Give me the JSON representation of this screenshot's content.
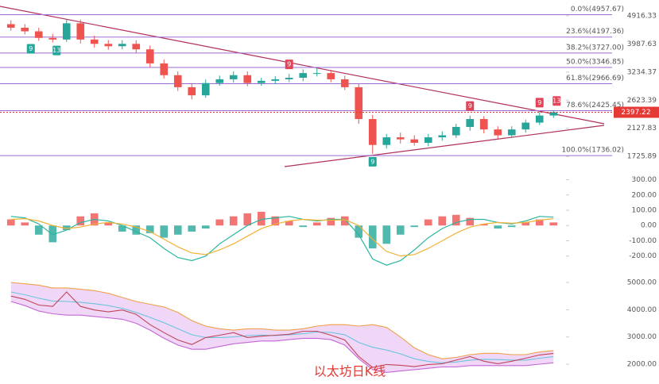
{
  "chart_data": [
    {
      "type": "candlestick",
      "log_scale": true,
      "ylim": [
        1600,
        5530
      ],
      "yticks": [
        4916.33,
        3987.63,
        3234.37,
        2623.39,
        2127.83,
        1725.89
      ],
      "up_color": "#26a69a",
      "down_color": "#ef5350",
      "open": [
        4620,
        4500,
        4380,
        4170,
        4120,
        4650,
        4120,
        3990,
        3920,
        3990,
        3830,
        3450,
        3160,
        2890,
        2720,
        2980,
        3065,
        3160,
        2980,
        3030,
        3065,
        3100,
        3210,
        3210,
        3065,
        2890,
        2280,
        1880,
        1990,
        1960,
        1910,
        1990,
        2020,
        2150,
        2280,
        2110,
        2020,
        2110,
        2220,
        2340
      ],
      "high": [
        4750,
        4620,
        4500,
        4300,
        4780,
        4780,
        4240,
        4100,
        4100,
        4100,
        3940,
        3550,
        3250,
        2980,
        3060,
        3150,
        3250,
        3250,
        3100,
        3140,
        3190,
        3300,
        3330,
        3290,
        3150,
        2960,
        2350,
        2040,
        2060,
        2020,
        2040,
        2080,
        2200,
        2340,
        2330,
        2160,
        2160,
        2270,
        2400,
        2430
      ],
      "low": [
        4400,
        4280,
        4080,
        4030,
        4050,
        4000,
        3880,
        3820,
        3830,
        3720,
        3350,
        3080,
        2810,
        2640,
        2670,
        2920,
        2990,
        2910,
        2920,
        2960,
        3000,
        3020,
        3130,
        3000,
        2830,
        2200,
        1760,
        1830,
        1900,
        1870,
        1860,
        1940,
        1980,
        2090,
        2050,
        1970,
        1980,
        2060,
        2180,
        2300
      ],
      "close": [
        4500,
        4380,
        4170,
        4120,
        4650,
        4120,
        3990,
        3920,
        3990,
        3830,
        3450,
        3160,
        2890,
        2720,
        2980,
        3065,
        3160,
        2980,
        3030,
        3065,
        3100,
        3210,
        3210,
        3065,
        2890,
        2280,
        1880,
        1990,
        1960,
        1910,
        1990,
        2020,
        2150,
        2280,
        2110,
        2020,
        2110,
        2220,
        2340,
        2397.22
      ],
      "fib_color": "#9b6bd3",
      "fib_levels": [
        {
          "value": 4957.67,
          "label": "0.0%(4957.67)"
        },
        {
          "value": 4197.36,
          "label": "23.6%(4197.36)"
        },
        {
          "value": 3727.0,
          "label": "38.2%(3727.00)"
        },
        {
          "value": 3346.85,
          "label": "50.0%(3346.85)"
        },
        {
          "value": 2966.69,
          "label": "61.8%(2966.69)"
        },
        {
          "value": 2425.45,
          "label": "78.6%(2425.45)"
        },
        {
          "value": 1736.02,
          "label": "100.0%(1736.02)"
        }
      ],
      "last_price": 2397.22,
      "last_price_color": "#e53935",
      "markers": [
        {
          "label": "9",
          "color": "#26a69a"
        },
        {
          "label": "13",
          "color": "#26a69a"
        },
        {
          "label": "9",
          "color": "#e0455a"
        },
        {
          "label": "9",
          "color": "#26a69a"
        },
        {
          "label": "9",
          "color": "#e0455a"
        },
        {
          "label": "9",
          "color": "#e0455a"
        },
        {
          "label": "13",
          "color": "#e0455a"
        }
      ]
    },
    {
      "type": "macd",
      "ylim": [
        -290,
        360
      ],
      "yticks": [
        {
          "value": 300,
          "label": "300.00"
        },
        {
          "value": 200,
          "label": "200.00"
        },
        {
          "value": 100,
          "label": "100.00"
        },
        {
          "value": 0,
          "label": "0.00"
        },
        {
          "value": -100,
          "label": "-100.00"
        },
        {
          "value": -200,
          "label": "-200.00"
        }
      ],
      "pos_color": "#ef5350",
      "neg_color": "#26a69a",
      "histogram": [
        40,
        20,
        -60,
        -110,
        -30,
        60,
        80,
        20,
        -40,
        -60,
        -50,
        -80,
        -60,
        -40,
        -20,
        40,
        60,
        80,
        90,
        60,
        30,
        -10,
        20,
        50,
        60,
        -80,
        -150,
        -120,
        -60,
        -10,
        40,
        60,
        70,
        50,
        10,
        -20,
        -10,
        20,
        40,
        20
      ],
      "series": [
        {
          "color": "#2bb5a0",
          "values": [
            60,
            50,
            10,
            -60,
            -30,
            20,
            40,
            30,
            0,
            -40,
            -80,
            -150,
            -210,
            -230,
            -200,
            -120,
            -60,
            0,
            40,
            50,
            60,
            40,
            30,
            40,
            40,
            -60,
            -220,
            -260,
            -230,
            -160,
            -80,
            -20,
            20,
            40,
            40,
            20,
            10,
            30,
            60,
            55
          ]
        },
        {
          "color": "#f2b233",
          "values": [
            40,
            45,
            30,
            0,
            -20,
            -10,
            10,
            20,
            10,
            -10,
            -40,
            -90,
            -140,
            -180,
            -190,
            -160,
            -120,
            -70,
            -20,
            10,
            30,
            40,
            35,
            35,
            38,
            0,
            -90,
            -170,
            -200,
            -190,
            -150,
            -100,
            -50,
            -10,
            10,
            20,
            15,
            20,
            35,
            45
          ]
        }
      ]
    },
    {
      "type": "bollinger",
      "ylim": [
        1390,
        5320
      ],
      "yticks": [
        {
          "value": 5000,
          "label": "5000.00"
        },
        {
          "value": 4000,
          "label": "4000.00"
        },
        {
          "value": 3000,
          "label": "3000.00"
        },
        {
          "value": 2000,
          "label": "2000.00"
        }
      ],
      "band_color": "#e9c6f3",
      "upper_color": "#f0a04b",
      "lower_color": "#c367d6",
      "middle_color": "#6cc4de",
      "close_color": "#c0455a",
      "upper": [
        5000,
        4950,
        4900,
        4800,
        4800,
        4750,
        4700,
        4600,
        4450,
        4300,
        4200,
        4100,
        3900,
        3600,
        3400,
        3300,
        3250,
        3300,
        3300,
        3250,
        3250,
        3300,
        3400,
        3450,
        3450,
        3400,
        3450,
        3350,
        3000,
        2600,
        2350,
        2200,
        2250,
        2350,
        2400,
        2400,
        2350,
        2350,
        2450,
        2500
      ],
      "middle": [
        4650,
        4550,
        4420,
        4320,
        4300,
        4270,
        4220,
        4150,
        4050,
        3900,
        3720,
        3520,
        3300,
        3080,
        2980,
        2980,
        3000,
        3050,
        3070,
        3050,
        3080,
        3120,
        3180,
        3170,
        3080,
        2800,
        2620,
        2520,
        2380,
        2200,
        2100,
        2050,
        2080,
        2150,
        2180,
        2170,
        2150,
        2150,
        2220,
        2280
      ],
      "lower": [
        4300,
        4150,
        3950,
        3850,
        3800,
        3800,
        3750,
        3700,
        3650,
        3500,
        3250,
        2950,
        2700,
        2550,
        2550,
        2650,
        2750,
        2800,
        2850,
        2850,
        2900,
        2950,
        2950,
        2900,
        2700,
        2200,
        1800,
        1700,
        1750,
        1800,
        1850,
        1900,
        1900,
        1950,
        1950,
        1950,
        1950,
        1950,
        2000,
        2050
      ],
      "close": [
        4500,
        4380,
        4170,
        4120,
        4650,
        4120,
        3990,
        3920,
        3990,
        3830,
        3450,
        3160,
        2890,
        2720,
        2980,
        3065,
        3160,
        2980,
        3030,
        3065,
        3100,
        3210,
        3210,
        3065,
        2890,
        2280,
        1880,
        1990,
        1960,
        1910,
        1990,
        2020,
        2150,
        2280,
        2110,
        2020,
        2110,
        2220,
        2340,
        2397.22
      ],
      "caption": "以太坊日K线",
      "caption_color": "#e53935"
    }
  ]
}
